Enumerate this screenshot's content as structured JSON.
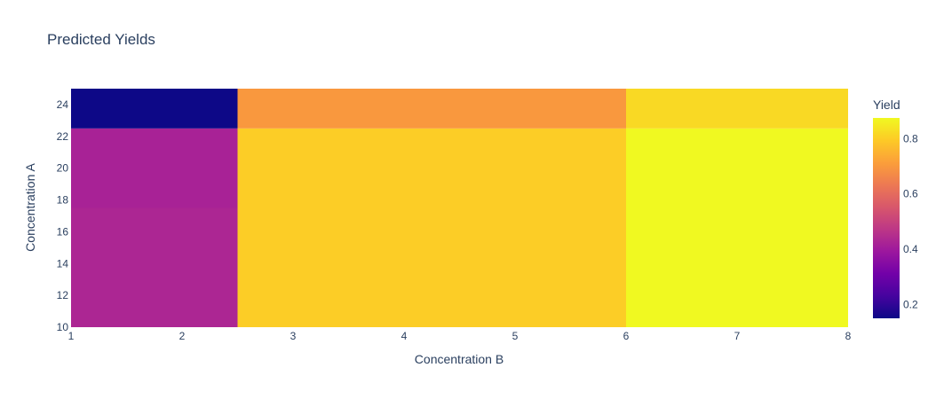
{
  "chart_data": {
    "type": "heatmap",
    "title": "Predicted Yields",
    "xlabel": "Concentration B",
    "ylabel": "Concentration A",
    "x_range": [
      1,
      8
    ],
    "y_range": [
      10,
      25
    ],
    "x_ticks": [
      "1",
      "2",
      "3",
      "4",
      "5",
      "6",
      "7",
      "8"
    ],
    "y_ticks": [
      "10",
      "12",
      "14",
      "16",
      "18",
      "20",
      "22",
      "24"
    ],
    "colorbar": {
      "title": "Yield",
      "range": [
        0.15,
        0.875
      ],
      "ticks": [
        "0.2",
        "0.4",
        "0.6",
        "0.8"
      ],
      "tick_values": [
        0.2,
        0.4,
        0.6,
        0.8
      ],
      "colorscale": [
        "#0d0887",
        "#46039f",
        "#7201a8",
        "#9c179e",
        "#bd3786",
        "#d8576b",
        "#ed7953",
        "#fb9f3a",
        "#fdca26",
        "#f0f921"
      ]
    },
    "cells": [
      {
        "x0": 1,
        "x1": 2.5,
        "y0": 10,
        "y1": 17.5,
        "value": 0.43
      },
      {
        "x0": 1,
        "x1": 2.5,
        "y0": 17.5,
        "y1": 22.5,
        "value": 0.42
      },
      {
        "x0": 1,
        "x1": 2.5,
        "y0": 22.5,
        "y1": 25,
        "value": 0.15
      },
      {
        "x0": 2.5,
        "x1": 6,
        "y0": 10,
        "y1": 22.5,
        "value": 0.8
      },
      {
        "x0": 2.5,
        "x1": 6,
        "y0": 22.5,
        "y1": 25,
        "value": 0.7
      },
      {
        "x0": 6,
        "x1": 8,
        "y0": 10,
        "y1": 22.5,
        "value": 0.875
      },
      {
        "x0": 6,
        "x1": 8,
        "y0": 22.5,
        "y1": 25,
        "value": 0.82
      }
    ]
  }
}
